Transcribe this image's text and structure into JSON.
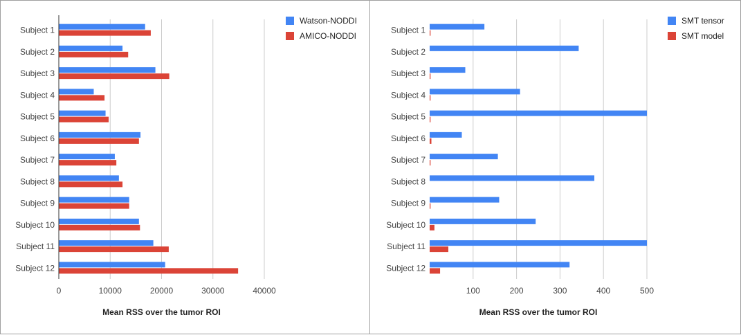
{
  "chart_data": [
    {
      "type": "bar",
      "orientation": "horizontal",
      "categories": [
        "Subject 1",
        "Subject 2",
        "Subject 3",
        "Subject 4",
        "Subject 5",
        "Subject 6",
        "Subject 7",
        "Subject 8",
        "Subject 9",
        "Subject 10",
        "Subject 11",
        "Subject 12"
      ],
      "series": [
        {
          "name": "Watson-NODDI",
          "color": "#4285f4",
          "values": [
            16800,
            12400,
            18800,
            6800,
            9100,
            15900,
            10900,
            11700,
            13700,
            15600,
            18400,
            20700
          ]
        },
        {
          "name": "AMICO-NODDI",
          "color": "#db4437",
          "values": [
            17900,
            13500,
            21500,
            8900,
            9700,
            15600,
            11200,
            12400,
            13700,
            15800,
            21400,
            34900
          ]
        }
      ],
      "xlim": [
        0,
        40000
      ],
      "xticks": [
        0,
        10000,
        20000,
        30000,
        40000
      ],
      "xtick_labels": [
        "0",
        "10000",
        "20000",
        "30000",
        "40000"
      ],
      "xlabel": "Mean RSS over the tumor ROI",
      "ylabel": "",
      "legend_position": "top-right",
      "grid": true
    },
    {
      "type": "bar",
      "orientation": "horizontal",
      "categories": [
        "Subject 1",
        "Subject 2",
        "Subject 3",
        "Subject 4",
        "Subject 5",
        "Subject 6",
        "Subject 7",
        "Subject 8",
        "Subject 9",
        "Subject 10",
        "Subject 11",
        "Subject 12"
      ],
      "series": [
        {
          "name": "SMT tensor",
          "color": "#4285f4",
          "values": [
            126,
            343,
            82,
            208,
            500,
            74,
            157,
            379,
            160,
            244,
            500,
            322
          ]
        },
        {
          "name": "SMT model",
          "color": "#db4437",
          "values": [
            2,
            0,
            2,
            2,
            2,
            4,
            2,
            0,
            2,
            11,
            43,
            24
          ]
        }
      ],
      "xlim": [
        0,
        500
      ],
      "xticks": [
        100,
        200,
        300,
        400,
        500
      ],
      "xtick_labels": [
        "100",
        "200",
        "300",
        "400",
        "500"
      ],
      "xlabel": "Mean RSS over the tumor ROI",
      "ylabel": "",
      "legend_position": "top-right",
      "grid": true
    }
  ]
}
